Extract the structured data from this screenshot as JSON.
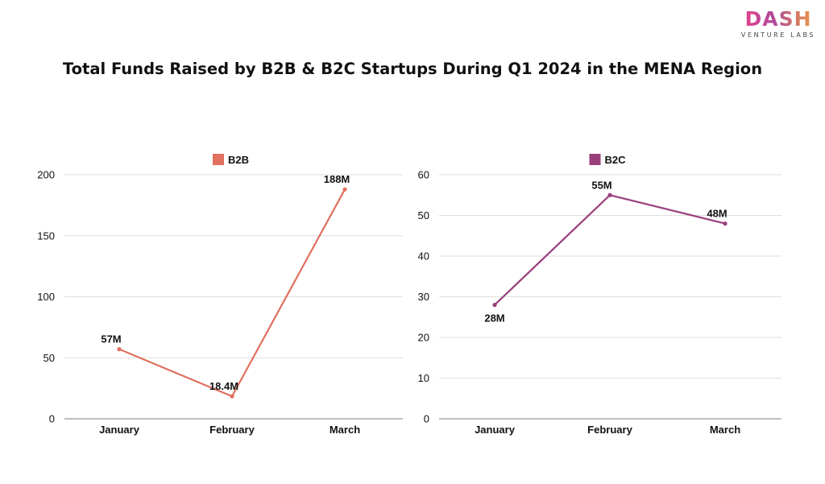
{
  "title": "Total Funds Raised by B2B & B2C Startups During Q1 2024 in the MENA Region",
  "logo": {
    "word": "DASH",
    "sub": "VENTURE LABS"
  },
  "chart_data": [
    {
      "type": "line",
      "categories": [
        "January",
        "February",
        "March"
      ],
      "series": [
        {
          "name": "B2B",
          "color": "#e0705f",
          "values": [
            57,
            18.4,
            188
          ],
          "labels": [
            "57M",
            "18.4M",
            "188M"
          ]
        }
      ],
      "ylim": [
        0,
        200
      ],
      "yticks": [
        0,
        50,
        100,
        150,
        200
      ],
      "grid": true,
      "legend": "top-center"
    },
    {
      "type": "line",
      "categories": [
        "January",
        "February",
        "March"
      ],
      "series": [
        {
          "name": "B2C",
          "color": "#9a3f7c",
          "values": [
            28,
            55,
            48
          ],
          "labels": [
            "28M",
            "55M",
            "48M"
          ]
        }
      ],
      "ylim": [
        0,
        60
      ],
      "yticks": [
        0,
        10,
        20,
        30,
        40,
        50,
        60
      ],
      "grid": true,
      "legend": "top-center"
    }
  ]
}
